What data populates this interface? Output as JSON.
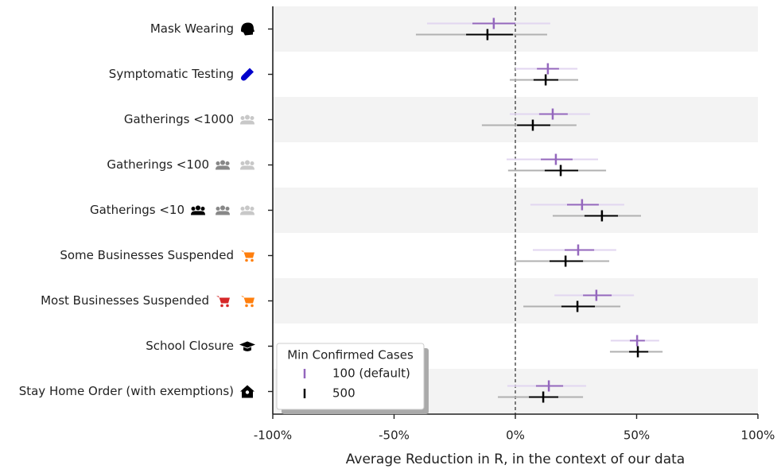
{
  "chart_data": {
    "type": "interval",
    "xlabel": "Average Reduction in R, in the context of our data",
    "categories": [
      "Mask Wearing",
      "Symptomatic Testing",
      "Gatherings <1000",
      "Gatherings <100",
      "Gatherings <10",
      "Some Businesses Suspended",
      "Most Businesses Suspended",
      "School Closure",
      "Stay Home Order (with exemptions)"
    ],
    "category_colors": [
      "#000000",
      "#0000cc",
      "#c8c8c8",
      "#888888",
      "#000000",
      "#ff7f0e",
      "#d62728",
      "#000000",
      "#000000"
    ],
    "series": [
      {
        "name": "100 (default)",
        "color": "#9467bd",
        "outer_color": "#e2d6f0",
        "values": [
          -8.9,
          13.4,
          15.4,
          16.7,
          27.5,
          25.9,
          33.4,
          50.2,
          13.8
        ],
        "inner": [
          [
            -17.7,
            0
          ],
          [
            8.9,
            18
          ],
          [
            9.8,
            21.6
          ],
          [
            10.5,
            23.6
          ],
          [
            21.3,
            34.4
          ],
          [
            20.3,
            32.5
          ],
          [
            27.9,
            39.7
          ],
          [
            47.2,
            53.4
          ],
          [
            8.5,
            19.7
          ]
        ],
        "outer": [
          [
            -36.4,
            14.4
          ],
          [
            0,
            25.6
          ],
          [
            -2.3,
            30.8
          ],
          [
            -3.6,
            34.1
          ],
          [
            6.2,
            44.9
          ],
          [
            7.2,
            41.6
          ],
          [
            16.1,
            48.9
          ],
          [
            39.3,
            59.3
          ],
          [
            -3.3,
            29.2
          ]
        ]
      },
      {
        "name": "500",
        "color": "#000000",
        "outer_color": "#b0b0b0",
        "values": [
          -11.5,
          12.5,
          7.2,
          18.7,
          35.7,
          20.7,
          25.6,
          50.5,
          11.5
        ],
        "inner": [
          [
            -20.3,
            -1
          ],
          [
            7.5,
            17.7
          ],
          [
            0.7,
            14.4
          ],
          [
            12.1,
            25.9
          ],
          [
            28.5,
            42.3
          ],
          [
            14.1,
            27.9
          ],
          [
            19,
            32.8
          ],
          [
            46.9,
            54.8
          ],
          [
            5.6,
            17.7
          ]
        ],
        "outer": [
          [
            -41,
            13.1
          ],
          [
            -2.3,
            25.9
          ],
          [
            -13.8,
            25.2
          ],
          [
            -3,
            37.4
          ],
          [
            15.4,
            51.8
          ],
          [
            -0.3,
            38.7
          ],
          [
            3.3,
            43.3
          ],
          [
            39,
            60.7
          ],
          [
            -7.2,
            27.9
          ]
        ]
      }
    ],
    "xlim": [
      -100,
      100
    ],
    "xticks": [
      {
        "value": -100,
        "label": "-100%"
      },
      {
        "value": -50,
        "label": "-50%"
      },
      {
        "value": 0,
        "label": "0%"
      },
      {
        "value": 50,
        "label": "50%"
      },
      {
        "value": 100,
        "label": "100%"
      }
    ],
    "vline": 0,
    "legend_title": "Min Confirmed Cases",
    "legend": "lower left",
    "banded_rows": true
  }
}
